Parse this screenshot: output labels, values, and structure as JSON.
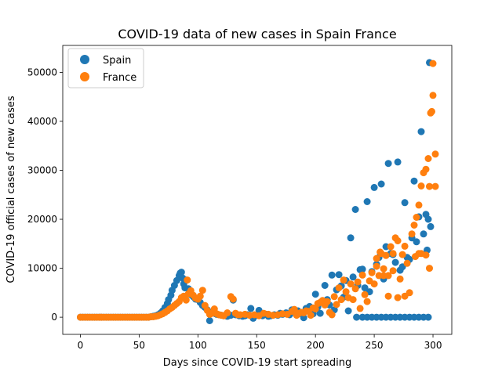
{
  "chart_data": {
    "type": "scatter",
    "title": "COVID-19 data of new cases in Spain France",
    "xlabel": "Days since COVID-19 start spreading",
    "ylabel": "COVID-19 official cases of new cases",
    "xlim": [
      -15,
      316
    ],
    "ylim": [
      -3500,
      55500
    ],
    "xticks": [
      0,
      50,
      100,
      150,
      200,
      250,
      300
    ],
    "yticks": [
      0,
      10000,
      20000,
      30000,
      40000,
      50000
    ],
    "grid": false,
    "legend_position": "top-left",
    "series": [
      {
        "name": "Spain",
        "color": "#1f77b4",
        "points": [
          [
            0,
            0
          ],
          [
            2,
            0
          ],
          [
            4,
            0
          ],
          [
            6,
            0
          ],
          [
            8,
            0
          ],
          [
            10,
            0
          ],
          [
            12,
            0
          ],
          [
            14,
            0
          ],
          [
            16,
            0
          ],
          [
            18,
            0
          ],
          [
            20,
            0
          ],
          [
            22,
            0
          ],
          [
            24,
            0
          ],
          [
            26,
            0
          ],
          [
            28,
            0
          ],
          [
            30,
            0
          ],
          [
            32,
            0
          ],
          [
            34,
            0
          ],
          [
            36,
            0
          ],
          [
            38,
            0
          ],
          [
            40,
            0
          ],
          [
            42,
            0
          ],
          [
            44,
            0
          ],
          [
            46,
            0
          ],
          [
            48,
            0
          ],
          [
            50,
            0
          ],
          [
            52,
            0
          ],
          [
            54,
            0
          ],
          [
            56,
            0
          ],
          [
            58,
            0
          ],
          [
            60,
            100
          ],
          [
            62,
            200
          ],
          [
            64,
            300
          ],
          [
            66,
            500
          ],
          [
            68,
            800
          ],
          [
            70,
            1300
          ],
          [
            72,
            2000
          ],
          [
            74,
            2800
          ],
          [
            75,
            3600
          ],
          [
            77,
            4500
          ],
          [
            78,
            5500
          ],
          [
            80,
            6500
          ],
          [
            82,
            7500
          ],
          [
            84,
            8500
          ],
          [
            85,
            9000
          ],
          [
            86,
            9200
          ],
          [
            87,
            8000
          ],
          [
            88,
            6800
          ],
          [
            89,
            6000
          ],
          [
            90,
            7600
          ],
          [
            92,
            5800
          ],
          [
            94,
            4600
          ],
          [
            96,
            4200
          ],
          [
            98,
            3700
          ],
          [
            100,
            3600
          ],
          [
            102,
            3000
          ],
          [
            104,
            2400
          ],
          [
            106,
            2000
          ],
          [
            108,
            1500
          ],
          [
            110,
            -700
          ],
          [
            112,
            1000
          ],
          [
            114,
            800
          ],
          [
            116,
            600
          ],
          [
            118,
            500
          ],
          [
            120,
            400
          ],
          [
            122,
            300
          ],
          [
            125,
            200
          ],
          [
            128,
            400
          ],
          [
            130,
            3500
          ],
          [
            132,
            500
          ],
          [
            135,
            300
          ],
          [
            138,
            200
          ],
          [
            140,
            300
          ],
          [
            142,
            500
          ],
          [
            145,
            1800
          ],
          [
            147,
            -200
          ],
          [
            150,
            400
          ],
          [
            152,
            1400
          ],
          [
            155,
            300
          ],
          [
            158,
            600
          ],
          [
            160,
            200
          ],
          [
            162,
            300
          ],
          [
            165,
            500
          ],
          [
            168,
            400
          ],
          [
            170,
            800
          ],
          [
            172,
            600
          ],
          [
            175,
            900
          ],
          [
            178,
            500
          ],
          [
            180,
            1500
          ],
          [
            182,
            1100
          ],
          [
            185,
            1300
          ],
          [
            188,
            700
          ],
          [
            190,
            -100
          ],
          [
            192,
            1800
          ],
          [
            195,
            2200
          ],
          [
            198,
            700
          ],
          [
            200,
            4700
          ],
          [
            202,
            2100
          ],
          [
            204,
            800
          ],
          [
            206,
            3000
          ],
          [
            208,
            6500
          ],
          [
            210,
            3600
          ],
          [
            212,
            2500
          ],
          [
            214,
            8600
          ],
          [
            216,
            1500
          ],
          [
            218,
            5600
          ],
          [
            220,
            8700
          ],
          [
            222,
            6400
          ],
          [
            224,
            4100
          ],
          [
            226,
            7500
          ],
          [
            228,
            1300
          ],
          [
            230,
            16200
          ],
          [
            232,
            8200
          ],
          [
            234,
            22000
          ],
          [
            236,
            6500
          ],
          [
            238,
            9700
          ],
          [
            240,
            9800
          ],
          [
            242,
            6000
          ],
          [
            244,
            23600
          ],
          [
            246,
            5200
          ],
          [
            248,
            9300
          ],
          [
            250,
            26500
          ],
          [
            252,
            10800
          ],
          [
            254,
            12200
          ],
          [
            256,
            27200
          ],
          [
            258,
            7800
          ],
          [
            260,
            14400
          ],
          [
            262,
            31400
          ],
          [
            264,
            13000
          ],
          [
            266,
            12800
          ],
          [
            268,
            11200
          ],
          [
            270,
            31700
          ],
          [
            272,
            9600
          ],
          [
            274,
            10300
          ],
          [
            276,
            23400
          ],
          [
            278,
            12200
          ],
          [
            280,
            11800
          ],
          [
            282,
            16200
          ],
          [
            284,
            27800
          ],
          [
            286,
            15400
          ],
          [
            288,
            20500
          ],
          [
            290,
            37900
          ],
          [
            292,
            17000
          ],
          [
            294,
            21000
          ],
          [
            295,
            13700
          ],
          [
            296,
            20000
          ],
          [
            297,
            52000
          ],
          [
            298,
            18500
          ],
          [
            252,
            0
          ],
          [
            256,
            0
          ],
          [
            260,
            0
          ],
          [
            264,
            0
          ],
          [
            268,
            0
          ],
          [
            272,
            0
          ],
          [
            276,
            0
          ],
          [
            280,
            0
          ],
          [
            284,
            0
          ],
          [
            288,
            0
          ],
          [
            292,
            0
          ],
          [
            296,
            0
          ],
          [
            235,
            0
          ],
          [
            240,
            0
          ],
          [
            244,
            0
          ],
          [
            248,
            0
          ]
        ]
      },
      {
        "name": "France",
        "color": "#ff7f0e",
        "points": [
          [
            0,
            0
          ],
          [
            2,
            0
          ],
          [
            4,
            0
          ],
          [
            6,
            0
          ],
          [
            8,
            0
          ],
          [
            10,
            0
          ],
          [
            12,
            0
          ],
          [
            14,
            0
          ],
          [
            16,
            0
          ],
          [
            18,
            0
          ],
          [
            20,
            0
          ],
          [
            22,
            0
          ],
          [
            24,
            0
          ],
          [
            26,
            0
          ],
          [
            28,
            0
          ],
          [
            30,
            0
          ],
          [
            32,
            0
          ],
          [
            34,
            0
          ],
          [
            36,
            0
          ],
          [
            38,
            0
          ],
          [
            40,
            0
          ],
          [
            42,
            0
          ],
          [
            44,
            0
          ],
          [
            46,
            0
          ],
          [
            48,
            0
          ],
          [
            50,
            0
          ],
          [
            52,
            0
          ],
          [
            54,
            0
          ],
          [
            56,
            0
          ],
          [
            58,
            0
          ],
          [
            60,
            100
          ],
          [
            62,
            100
          ],
          [
            64,
            200
          ],
          [
            66,
            300
          ],
          [
            68,
            500
          ],
          [
            70,
            700
          ],
          [
            72,
            1000
          ],
          [
            74,
            1300
          ],
          [
            76,
            1700
          ],
          [
            78,
            2000
          ],
          [
            80,
            2400
          ],
          [
            82,
            2800
          ],
          [
            84,
            3200
          ],
          [
            86,
            4000
          ],
          [
            88,
            4300
          ],
          [
            90,
            3500
          ],
          [
            91,
            7600
          ],
          [
            92,
            4800
          ],
          [
            94,
            5400
          ],
          [
            96,
            4500
          ],
          [
            98,
            3900
          ],
          [
            100,
            3700
          ],
          [
            102,
            4300
          ],
          [
            104,
            5500
          ],
          [
            106,
            2400
          ],
          [
            108,
            1400
          ],
          [
            110,
            600
          ],
          [
            112,
            800
          ],
          [
            114,
            1700
          ],
          [
            116,
            700
          ],
          [
            118,
            500
          ],
          [
            120,
            400
          ],
          [
            122,
            300
          ],
          [
            125,
            900
          ],
          [
            128,
            4200
          ],
          [
            130,
            3700
          ],
          [
            132,
            800
          ],
          [
            134,
            500
          ],
          [
            136,
            500
          ],
          [
            140,
            600
          ],
          [
            144,
            400
          ],
          [
            148,
            500
          ],
          [
            152,
            300
          ],
          [
            156,
            800
          ],
          [
            160,
            600
          ],
          [
            164,
            400
          ],
          [
            168,
            500
          ],
          [
            172,
            700
          ],
          [
            176,
            600
          ],
          [
            180,
            1200
          ],
          [
            182,
            1600
          ],
          [
            184,
            400
          ],
          [
            186,
            800
          ],
          [
            188,
            1000
          ],
          [
            190,
            900
          ],
          [
            192,
            1300
          ],
          [
            194,
            1200
          ],
          [
            196,
            400
          ],
          [
            198,
            1900
          ],
          [
            200,
            1700
          ],
          [
            202,
            2800
          ],
          [
            204,
            3000
          ],
          [
            206,
            3400
          ],
          [
            208,
            2500
          ],
          [
            210,
            3200
          ],
          [
            212,
            1000
          ],
          [
            214,
            500
          ],
          [
            216,
            4200
          ],
          [
            218,
            2600
          ],
          [
            220,
            6000
          ],
          [
            222,
            3600
          ],
          [
            224,
            7600
          ],
          [
            226,
            5200
          ],
          [
            228,
            4000
          ],
          [
            230,
            6800
          ],
          [
            232,
            3600
          ],
          [
            234,
            5800
          ],
          [
            236,
            7200
          ],
          [
            238,
            1800
          ],
          [
            240,
            8600
          ],
          [
            242,
            4600
          ],
          [
            244,
            3200
          ],
          [
            246,
            7400
          ],
          [
            248,
            9100
          ],
          [
            250,
            6800
          ],
          [
            252,
            10400
          ],
          [
            254,
            8500
          ],
          [
            256,
            13000
          ],
          [
            258,
            9900
          ],
          [
            260,
            12600
          ],
          [
            262,
            4300
          ],
          [
            264,
            14400
          ],
          [
            266,
            13000
          ],
          [
            268,
            16200
          ],
          [
            270,
            15600
          ],
          [
            272,
            7800
          ],
          [
            274,
            12800
          ],
          [
            276,
            14500
          ],
          [
            278,
            11000
          ],
          [
            280,
            5000
          ],
          [
            282,
            17000
          ],
          [
            284,
            18800
          ],
          [
            286,
            20400
          ],
          [
            288,
            22900
          ],
          [
            290,
            26800
          ],
          [
            292,
            29500
          ],
          [
            294,
            30200
          ],
          [
            296,
            32400
          ],
          [
            297,
            26700
          ],
          [
            298,
            41700
          ],
          [
            299,
            42000
          ],
          [
            300,
            45300
          ],
          [
            300,
            51800
          ],
          [
            302,
            33300
          ],
          [
            302,
            26700
          ],
          [
            270,
            4000
          ],
          [
            276,
            4300
          ],
          [
            262,
            8500
          ],
          [
            290,
            13000
          ],
          [
            294,
            12700
          ],
          [
            297,
            10000
          ],
          [
            288,
            13000
          ],
          [
            285,
            12400
          ],
          [
            252,
            12000
          ],
          [
            255,
            13300
          ],
          [
            258,
            8500
          ],
          [
            266,
            9500
          ]
        ]
      }
    ]
  }
}
